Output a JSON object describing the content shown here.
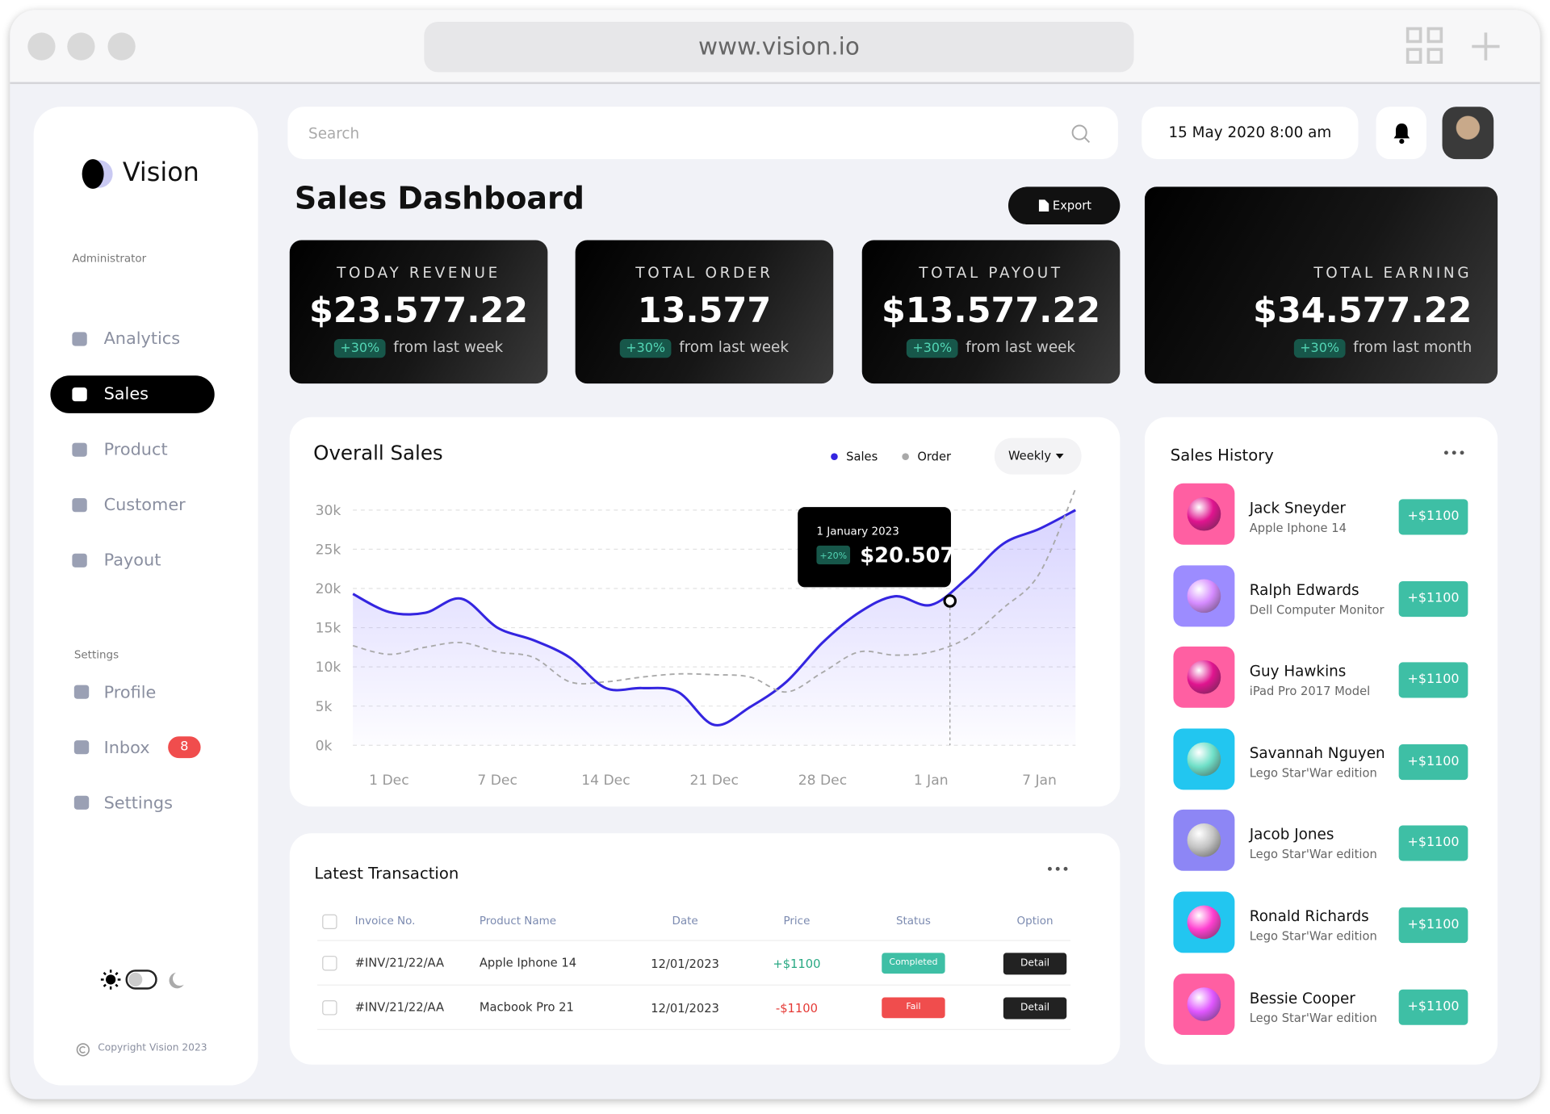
{
  "browser": {
    "url": "www.vision.io"
  },
  "sidebar": {
    "brand": "Vision",
    "role": "Administrator",
    "menu": [
      {
        "label": "Analytics"
      },
      {
        "label": "Sales",
        "active": true
      },
      {
        "label": "Product"
      },
      {
        "label": "Customer"
      },
      {
        "label": "Payout"
      }
    ],
    "settings_title": "Settings",
    "settings_menu": [
      {
        "label": "Profile"
      },
      {
        "label": "Inbox",
        "badge": 8
      },
      {
        "label": "Settings"
      }
    ],
    "copyright": "Copyright Vision 2023"
  },
  "header": {
    "search_placeholder": "Search",
    "datetime": "15 May 2020 8:00 am"
  },
  "page_title": "Sales Dashboard",
  "export_button": "Export",
  "cards": [
    {
      "label": "TODAY REVENUE",
      "value": "$23.577.22",
      "change": "+30%",
      "note": "from last week"
    },
    {
      "label": "TOTAL ORDER",
      "value": "13.577",
      "change": "+30%",
      "note": "from last week"
    },
    {
      "label": "TOTAL PAYOUT",
      "value": "$13.577.22",
      "change": "+30%",
      "note": "from last week"
    },
    {
      "label": "TOTAL EARNING",
      "value": "$34.577.22",
      "change": "+30%",
      "note": "from last month"
    }
  ],
  "chart_data": {
    "type": "line",
    "title": "Overall Sales",
    "period": "Weekly",
    "categories": [
      null,
      "1 Dec",
      null,
      null,
      "7 Dec",
      null,
      null,
      "14 Dec",
      null,
      null,
      "21 Dec",
      null,
      null,
      "28 Dec",
      null,
      null,
      "1 Jan",
      null,
      null,
      "7 Jan",
      null
    ],
    "series": [
      {
        "name": "Sales",
        "color": "#3425e0",
        "values": [
          19300,
          17000,
          16900,
          18700,
          15000,
          13400,
          11200,
          7300,
          7300,
          6800,
          2600,
          4900,
          8100,
          13100,
          16900,
          19000,
          17900,
          21300,
          25700,
          27600,
          30000
        ]
      },
      {
        "name": "Order",
        "color": "#a9a9a9",
        "values": [
          12700,
          11600,
          12500,
          13100,
          11900,
          11200,
          8100,
          8100,
          8700,
          9100,
          9000,
          8700,
          6800,
          9300,
          11900,
          11500,
          11900,
          13700,
          17500,
          21900,
          32700
        ]
      }
    ],
    "ylim": [
      0,
      33000
    ],
    "yticks": [
      {
        "value": 0,
        "label": "0k"
      },
      {
        "value": 5000,
        "label": "5k"
      },
      {
        "value": 10000,
        "label": "10k"
      },
      {
        "value": 15000,
        "label": "15k"
      },
      {
        "value": 20000,
        "label": "20k"
      },
      {
        "value": 25000,
        "label": "25k"
      },
      {
        "value": 30000,
        "label": "30k"
      }
    ],
    "grid": true,
    "annotation": {
      "date": "1 January 2023",
      "change": "+20%",
      "value": "$20.507"
    }
  },
  "transactions": {
    "title": "Latest Transaction",
    "columns": [
      "Invoice No.",
      "Product Name",
      "Date",
      "Price",
      "Status",
      "Option"
    ],
    "rows": [
      {
        "invoice": "#INV/21/22/AA",
        "product": "Apple Iphone 14",
        "date": "12/01/2023",
        "price": "+$1100",
        "price_color": "#27a882",
        "status": "Completed",
        "status_color": "#3ebfa5",
        "option": "Detail"
      },
      {
        "invoice": "#INV/21/22/AA",
        "product": "Macbook Pro 21",
        "date": "12/01/2023",
        "price": "-$1100",
        "price_color": "#e53935",
        "status": "Fail",
        "status_color": "#f04d4d",
        "option": "Detail"
      }
    ]
  },
  "history": {
    "title": "Sales History",
    "items": [
      {
        "name": "Jack Sneyder",
        "product": "Apple Iphone 14",
        "amount": "+$1100"
      },
      {
        "name": "Ralph Edwards",
        "product": "Dell Computer Monitor",
        "amount": "+$1100"
      },
      {
        "name": "Guy Hawkins",
        "product": "iPad Pro 2017 Model",
        "amount": "+$1100"
      },
      {
        "name": "Savannah Nguyen",
        "product": "Lego Star'War edition",
        "amount": "+$1100"
      },
      {
        "name": "Jacob Jones",
        "product": "Lego Star'War edition",
        "amount": "+$1100"
      },
      {
        "name": "Ronald Richards",
        "product": "Lego Star'War edition",
        "amount": "+$1100"
      },
      {
        "name": "Bessie Cooper",
        "product": "Lego Star'War edition",
        "amount": "+$1100"
      }
    ]
  }
}
